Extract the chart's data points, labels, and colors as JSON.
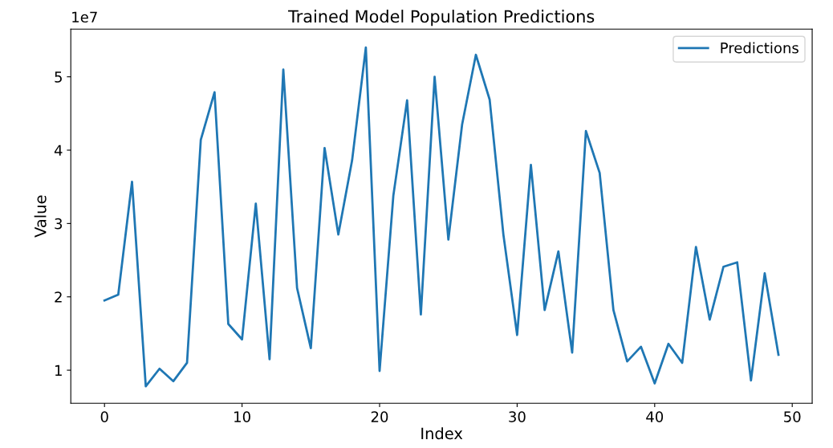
{
  "chart_data": {
    "type": "line",
    "title": "Trained Model Population Predictions",
    "xlabel": "Index",
    "ylabel": "Value",
    "x": [
      0,
      1,
      2,
      3,
      4,
      5,
      6,
      7,
      8,
      9,
      10,
      11,
      12,
      13,
      14,
      15,
      16,
      17,
      18,
      19,
      20,
      21,
      22,
      23,
      24,
      25,
      26,
      27,
      28,
      29,
      30,
      31,
      32,
      33,
      34,
      35,
      36,
      37,
      38,
      39,
      40,
      41,
      42,
      43,
      44,
      45,
      46,
      47,
      48,
      49
    ],
    "series": [
      {
        "name": "Predictions",
        "color": "#1f77b4",
        "values": [
          1.95,
          2.03,
          3.57,
          0.78,
          1.02,
          0.85,
          1.1,
          4.14,
          4.79,
          1.63,
          1.42,
          3.27,
          1.15,
          5.1,
          2.12,
          1.3,
          4.03,
          2.85,
          3.86,
          5.4,
          0.99,
          3.38,
          4.68,
          1.76,
          5.0,
          2.78,
          4.35,
          5.3,
          4.69,
          2.85,
          1.48,
          3.8,
          1.82,
          2.62,
          1.24,
          4.26,
          3.69,
          1.82,
          1.12,
          1.32,
          0.82,
          1.36,
          1.1,
          2.68,
          1.69,
          2.41,
          2.47,
          0.86,
          2.32,
          1.21
        ]
      }
    ],
    "xlim": [
      -2.45,
      51.45
    ],
    "xticks": [
      0,
      10,
      20,
      30,
      40,
      50
    ],
    "ylim": [
      0.55,
      5.65
    ],
    "yticks": [
      1,
      2,
      3,
      4,
      5
    ],
    "annotations": [
      "1e7"
    ],
    "legend": "top right",
    "grid": false,
    "marker": "none",
    "line_style": "solid"
  }
}
